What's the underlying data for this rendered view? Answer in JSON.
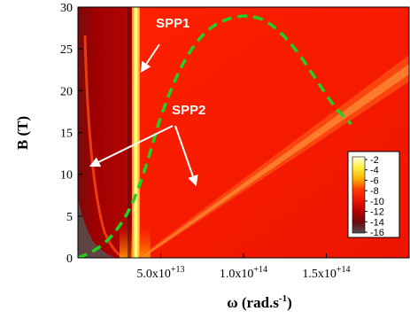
{
  "chart_data": {
    "type": "heatmap",
    "xlabel": "ω (rad.s",
    "xlabel_sup": "-1",
    "xlabel_close": ")",
    "ylabel": "B (T)",
    "xlim": [
      0,
      200000000000000.0
    ],
    "ylim": [
      0,
      30
    ],
    "x_ticks": [
      {
        "value": 50000000000000.0,
        "mantissa": "5.0x10",
        "exp": "+13"
      },
      {
        "value": 100000000000000.0,
        "mantissa": "1.0x10",
        "exp": "+14"
      },
      {
        "value": 150000000000000.0,
        "mantissa": "1.5x10",
        "exp": "+14"
      }
    ],
    "y_ticks": [
      0,
      5,
      10,
      15,
      20,
      25,
      30
    ],
    "colorbar": {
      "levels": [
        -2,
        -4,
        -6,
        -8,
        -10,
        -12,
        -14,
        -16
      ],
      "colors": [
        "#ffffe0",
        "#fff040",
        "#ffb000",
        "#ff3a00",
        "#ee1500",
        "#b80000",
        "#6e0a0a",
        "#505050"
      ]
    },
    "annotations": [
      {
        "text": "SPP1"
      },
      {
        "text": "SPP2"
      }
    ],
    "dashed_curve": {
      "color": "#22d022",
      "points": [
        [
          0.0,
          0.0
        ],
        [
          10000000000000.0,
          0.8
        ],
        [
          20000000000000.0,
          2.4
        ],
        [
          30000000000000.0,
          5.2
        ],
        [
          38000000000000.0,
          9.0
        ],
        [
          45000000000000.0,
          13.5
        ],
        [
          50000000000000.0,
          17.0
        ],
        [
          60000000000000.0,
          22.0
        ],
        [
          70000000000000.0,
          25.5
        ],
        [
          80000000000000.0,
          27.6
        ],
        [
          90000000000000.0,
          28.6
        ],
        [
          100000000000000.0,
          29.0
        ],
        [
          108000000000000.0,
          28.8
        ],
        [
          115000000000000.0,
          28.2
        ],
        [
          125000000000000.0,
          26.5
        ],
        [
          135000000000000.0,
          24.0
        ],
        [
          145000000000000.0,
          21.0
        ],
        [
          155000000000000.0,
          18.0
        ],
        [
          165000000000000.0,
          16.0
        ]
      ]
    }
  }
}
